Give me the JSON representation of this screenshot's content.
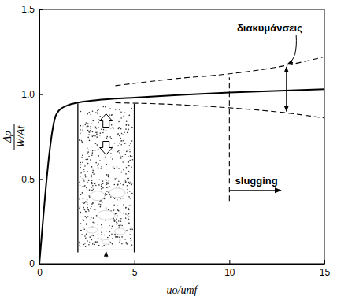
{
  "chart_data": {
    "type": "line",
    "xlabel": "uo/umf",
    "ylabel": {
      "numerator": "Δp",
      "denominator": "W/At"
    },
    "xlim": [
      0,
      15
    ],
    "ylim": [
      0,
      1.5
    ],
    "xticks": [
      0,
      5,
      10,
      15
    ],
    "yticks": [
      0,
      0.5,
      {
        "value": 1,
        "label": "1.0"
      },
      1.5
    ],
    "series": [
      {
        "color": "#000000",
        "line_style": "solid",
        "x": [
          0,
          0.85,
          1,
          1.5,
          2,
          3,
          5,
          10,
          15
        ],
        "values": [
          0,
          0.87,
          0.9,
          0.935,
          0.95,
          0.965,
          0.98,
          1.01,
          1.03
        ]
      },
      {
        "color": "#000000",
        "line_style": "dashed",
        "x": [
          4,
          7,
          10,
          13,
          15
        ],
        "values": [
          1.05,
          1.09,
          1.12,
          1.17,
          1.22
        ]
      },
      {
        "color": "#000000",
        "line_style": "dashed",
        "x": [
          4,
          7,
          10,
          13,
          15
        ],
        "values": [
          0.95,
          0.94,
          0.92,
          0.89,
          0.86
        ]
      },
      {
        "color": "#000000",
        "line_style": "dashed",
        "x": [
          10,
          10
        ],
        "values": [
          0.37,
          1.1
        ]
      }
    ],
    "annotations": [
      {
        "text": "διακυμάνσεις",
        "x": 10.4,
        "y": 1.37
      },
      {
        "text": "slugging",
        "x": 10.3,
        "y": 0.47
      }
    ]
  }
}
